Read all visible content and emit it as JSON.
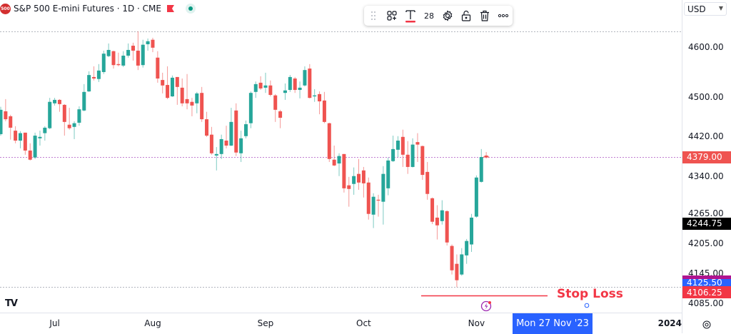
{
  "header": {
    "logo_text": "500",
    "title": "S&P 500 E-mini Futures · 1D · CME",
    "flag_icon": "red-flag",
    "status_icon": "market-open-dot"
  },
  "toolbar": {
    "items": [
      "drag-handle",
      "object-tree",
      "text",
      "font-size",
      "settings",
      "unlock",
      "delete",
      "more"
    ],
    "font_size": "28",
    "text_underline_color": "#f23645"
  },
  "currency": "USD",
  "branding": "TV",
  "colors": {
    "up": "#26a69a",
    "down": "#ef5350",
    "stop_loss": "#f23645",
    "last_price": "#ef5350",
    "blue_label": "#2962ff",
    "magenta_label": "#b0148f"
  },
  "annotation": {
    "text": "Stop Loss",
    "price": 4101
  },
  "price_labels": [
    {
      "text": "4379.00",
      "price": 4379,
      "bg": "#ef5350"
    },
    {
      "text": "4244.75",
      "price": 4244.75,
      "bg": "#000000"
    },
    {
      "text": "4125.50",
      "price": 4125.5,
      "bg": "#2962ff"
    },
    {
      "text": "4106.25",
      "price": 4106.25,
      "bg": "#f23645"
    }
  ],
  "crosshair_date": "Mon 27 Nov '23",
  "chart_data": {
    "type": "candlestick",
    "ylim": [
      4063,
      4695
    ],
    "y_ticks": [
      {
        "label": "4600.00",
        "value": 4600
      },
      {
        "label": "4500.00",
        "value": 4500
      },
      {
        "label": "4420.00",
        "value": 4420
      },
      {
        "label": "4340.00",
        "value": 4340
      },
      {
        "label": "4265.00",
        "value": 4265
      },
      {
        "label": "4205.00",
        "value": 4205
      },
      {
        "label": "4145.00",
        "value": 4145
      },
      {
        "label": "4085.00",
        "value": 4085
      }
    ],
    "x_ticks": [
      {
        "label": "Jul",
        "bar": 11
      },
      {
        "label": "Aug",
        "bar": 31
      },
      {
        "label": "Sep",
        "bar": 54
      },
      {
        "label": "Oct",
        "bar": 74
      },
      {
        "label": "Nov",
        "bar": 97
      },
      {
        "label": "2024",
        "bar": 143
      }
    ],
    "horizontal_lines": [
      {
        "price": 4632,
        "style": "dotted",
        "color": "#b2b5be"
      },
      {
        "price": 4379,
        "style": "dotted",
        "color": "#c07dd0"
      },
      {
        "price": 4117,
        "style": "dotted",
        "color": "#b2b5be"
      }
    ],
    "last_price": 4379,
    "ohlc": [
      [
        4425,
        4480,
        4422,
        4474
      ],
      [
        4471,
        4495.5,
        4451,
        4455
      ],
      [
        4461,
        4464,
        4414,
        4438
      ],
      [
        4432,
        4441,
        4406.6,
        4412
      ],
      [
        4412,
        4431,
        4396.5,
        4427
      ],
      [
        4428,
        4428,
        4383.6,
        4392
      ],
      [
        4392,
        4406.6,
        4372,
        4373.6
      ],
      [
        4378,
        4428,
        4375,
        4422
      ],
      [
        4416.6,
        4432,
        4402,
        4419.5
      ],
      [
        4427,
        4441,
        4412,
        4438
      ],
      [
        4437,
        4498,
        4435,
        4490
      ],
      [
        4487,
        4498,
        4482.6,
        4494
      ],
      [
        4494,
        4495.5,
        4470,
        4485.5
      ],
      [
        4484,
        4485.5,
        4422,
        4449.6
      ],
      [
        4444,
        4478,
        4434,
        4437
      ],
      [
        4439.6,
        4451,
        4415,
        4447
      ],
      [
        4448,
        4481,
        4442,
        4475
      ],
      [
        4472.6,
        4525.7,
        4471,
        4510
      ],
      [
        4511,
        4551.5,
        4510,
        4544
      ],
      [
        4540,
        4561.5,
        4533,
        4537
      ],
      [
        4536,
        4566,
        4530,
        4553
      ],
      [
        4550,
        4593,
        4546,
        4587
      ],
      [
        4582,
        4607.5,
        4580,
        4594.5
      ],
      [
        4592,
        4593,
        4557,
        4564
      ],
      [
        4566,
        4589,
        4561.5,
        4564
      ],
      [
        4563,
        4592,
        4560,
        4583
      ],
      [
        4583,
        4607.5,
        4579,
        4594.5
      ],
      [
        4603,
        4609,
        4573,
        4593
      ],
      [
        4593,
        4632,
        4554,
        4563
      ],
      [
        4564,
        4615,
        4559,
        4605
      ],
      [
        4606,
        4617.5,
        4593,
        4612
      ],
      [
        4615,
        4619,
        4590,
        4599
      ],
      [
        4579,
        4592,
        4528.5,
        4537
      ],
      [
        4534,
        4548.6,
        4507,
        4523
      ],
      [
        4524,
        4561.5,
        4495.5,
        4498
      ],
      [
        4501,
        4543,
        4500,
        4538.6
      ],
      [
        4540,
        4540,
        4484,
        4520
      ],
      [
        4518.5,
        4537,
        4481,
        4487
      ],
      [
        4495.5,
        4546,
        4475,
        4487
      ],
      [
        4490,
        4498,
        4461,
        4482.6
      ],
      [
        4487,
        4510,
        4467,
        4507
      ],
      [
        4508,
        4520,
        4449.6,
        4455
      ],
      [
        4455,
        4470,
        4419.5,
        4422
      ],
      [
        4424,
        4439.6,
        4383.6,
        4386.5
      ],
      [
        4382,
        4399,
        4352,
        4385
      ],
      [
        4385,
        4424,
        4375,
        4415
      ],
      [
        4412,
        4442,
        4396.5,
        4402
      ],
      [
        4402,
        4478,
        4401,
        4449.6
      ],
      [
        4472.6,
        4487,
        4381,
        4388
      ],
      [
        4386.5,
        4432,
        4369,
        4416.6
      ],
      [
        4421,
        4452.5,
        4416.6,
        4445
      ],
      [
        4447,
        4511,
        4437,
        4508
      ],
      [
        4510,
        4531,
        4498,
        4525.7
      ],
      [
        4528.5,
        4541.5,
        4514,
        4517
      ],
      [
        4518.5,
        4548.6,
        4508,
        4523
      ],
      [
        4523,
        4533,
        4501,
        4504
      ],
      [
        4503,
        4505.6,
        4449.6,
        4474
      ],
      [
        4471,
        4474,
        4437,
        4458
      ],
      [
        4508,
        4527,
        4494,
        4513
      ],
      [
        4514,
        4544,
        4510,
        4540
      ],
      [
        4537,
        4540,
        4508,
        4514
      ],
      [
        4514,
        4531,
        4497,
        4518.5
      ],
      [
        4523,
        4561.5,
        4521,
        4554
      ],
      [
        4557,
        4566,
        4497,
        4498
      ],
      [
        4501,
        4515.6,
        4490,
        4503
      ],
      [
        4505.6,
        4511,
        4465,
        4491
      ],
      [
        4492.7,
        4510,
        4447,
        4449.6
      ],
      [
        4447,
        4448,
        4369,
        4375
      ],
      [
        4373.6,
        4402,
        4360.6,
        4362
      ],
      [
        4366,
        4386.5,
        4340.6,
        4381
      ],
      [
        4385,
        4385,
        4307.5,
        4316
      ],
      [
        4322,
        4339,
        4279,
        4314.7
      ],
      [
        4324.8,
        4358,
        4303,
        4340.6
      ],
      [
        4345,
        4375,
        4313,
        4327.6
      ],
      [
        4352,
        4359,
        4297.5,
        4326
      ],
      [
        4327.6,
        4337.7,
        4253,
        4264.5
      ],
      [
        4263,
        4306,
        4236,
        4299
      ],
      [
        4293,
        4303,
        4259,
        4292
      ],
      [
        4289,
        4360.6,
        4243,
        4345
      ],
      [
        4316,
        4378,
        4302,
        4372
      ],
      [
        4370.7,
        4422,
        4369,
        4395
      ],
      [
        4393.6,
        4421,
        4379,
        4412
      ],
      [
        4419.5,
        4434,
        4359,
        4383.6
      ],
      [
        4383.6,
        4411,
        4345,
        4359
      ],
      [
        4359,
        4416.6,
        4358,
        4404
      ],
      [
        4409,
        4427,
        4369,
        4404
      ],
      [
        4401,
        4402,
        4333,
        4343
      ],
      [
        4349,
        4369,
        4293,
        4304.7
      ],
      [
        4296,
        4297.5,
        4244,
        4248.7
      ],
      [
        4257,
        4282,
        4213,
        4241.5
      ],
      [
        4250,
        4292,
        4243,
        4271.7
      ],
      [
        4270,
        4271.7,
        4201,
        4207
      ],
      [
        4200,
        4203,
        4142.5,
        4151
      ],
      [
        4164,
        4183,
        4117,
        4131
      ],
      [
        4142.5,
        4195.6,
        4140,
        4183
      ],
      [
        4181,
        4214,
        4164,
        4210
      ],
      [
        4203,
        4264.5,
        4188,
        4257
      ],
      [
        4259,
        4342,
        4257,
        4337.7
      ],
      [
        4329,
        4395,
        4327.6,
        4379
      ],
      [
        4382,
        4389,
        4376,
        4379
      ]
    ]
  }
}
